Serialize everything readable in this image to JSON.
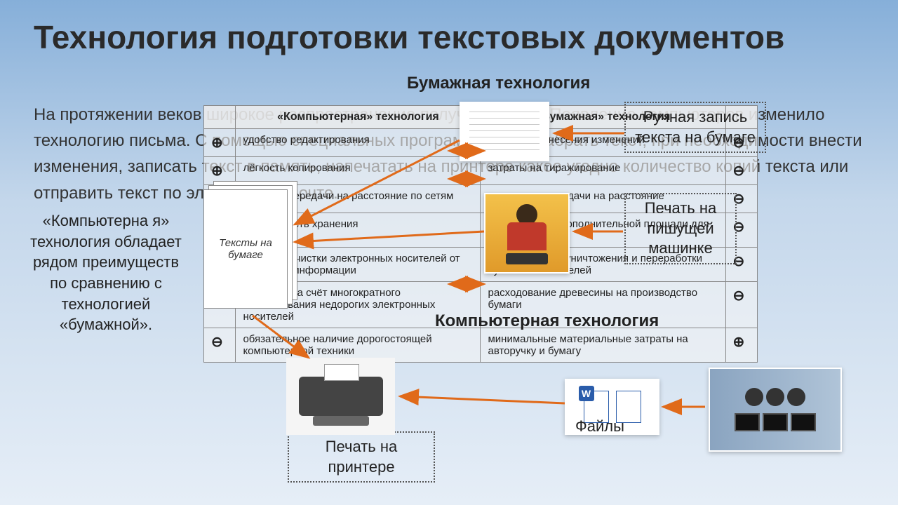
{
  "title": "Технология подготовки текстовых документов",
  "bg_paragraph": "На протяжении веков широкое распространение получили книги. Появление компьютеров изменило технологию письма. С помощью специальных программ можно набрать текст, при необходимости внести изменения, записать текст в память, напечатать на принтере какое угодно количество копий текста или отправить текст по электронной почте.",
  "side_left": "«Компьютерна я» технология обладает рядом преимуществ по сравнению с технологией «бумажной».",
  "step1": "Ручная запись текста на бумаге",
  "step2": "Печать на пишущей машинке",
  "step4": "Печать на принтере",
  "paper_sheet_label": "Тексты на бумаге",
  "files_label": "Файлы",
  "paper_heading": "Бумажная технология",
  "computer_heading": "Компьютерная технология",
  "table": {
    "head_computer": "«Компьютерная» технология",
    "head_paper": "«Бумажная» технология",
    "rows": [
      {
        "c": "удобство редактирования",
        "p": "сложности внесения изменений",
        "cs": "+",
        "ps": "-"
      },
      {
        "c": "лёгкость копирования",
        "p": "затраты на тиражирование",
        "cs": "+",
        "ps": "-"
      },
      {
        "c": "лёгкость передачи на расстояние по сетям",
        "p": "затраты на передачи на расстояние",
        "cs": "+",
        "ps": "-"
      },
      {
        "c": "компактность хранения",
        "p": "потребность в дополнительной площади для хранения",
        "cs": "+",
        "ps": "-"
      },
      {
        "c": "простота очистки электронных носителей от ненужной информации",
        "p": "необходимость уничтожения и переработки бумажных носителей",
        "cs": "+",
        "ps": "-"
      },
      {
        "c": "экономия за счёт многократного использования недорогих электронных носителей",
        "p": "расходование древесины на производство бумаги",
        "cs": "+",
        "ps": "-"
      },
      {
        "c": "обязательное наличие дорогостоящей компьютерной техники",
        "p": "минимальные материальные затраты на авторучку и бумагу",
        "cs": "-",
        "ps": "+"
      }
    ]
  },
  "colors": {
    "arrow": "#e06a1a",
    "border": "#888888"
  }
}
